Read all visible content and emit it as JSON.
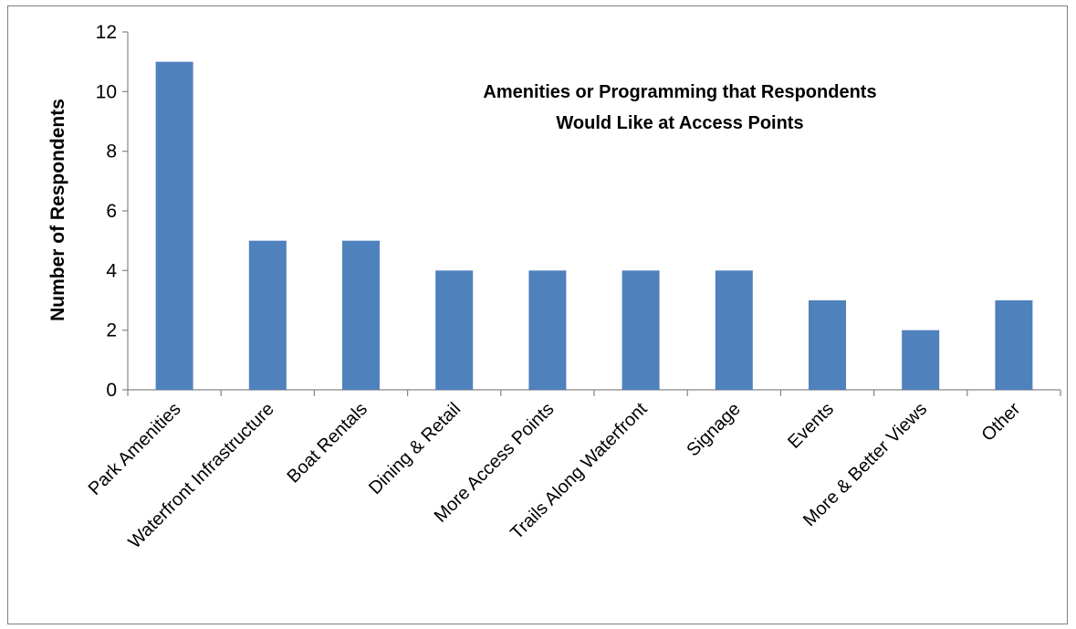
{
  "chart_data": {
    "type": "bar",
    "title_lines": [
      "Amenities or Programming that Respondents",
      "Would Like at Access Points"
    ],
    "xlabel": "",
    "ylabel": "Number of Respondents",
    "ylim": [
      0,
      12
    ],
    "yticks": [
      0,
      2,
      4,
      6,
      8,
      10,
      12
    ],
    "grid": false,
    "bar_color": "#4F81BD",
    "categories": [
      "Park Amenities",
      "Waterfront Infrastructure",
      "Boat Rentals",
      "Dining & Retail",
      "More Access Points",
      "Trails Along Waterfront",
      "Signage",
      "Events",
      "More & Better Views",
      "Other"
    ],
    "values": [
      11,
      5,
      5,
      4,
      4,
      4,
      4,
      3,
      2,
      3
    ]
  }
}
